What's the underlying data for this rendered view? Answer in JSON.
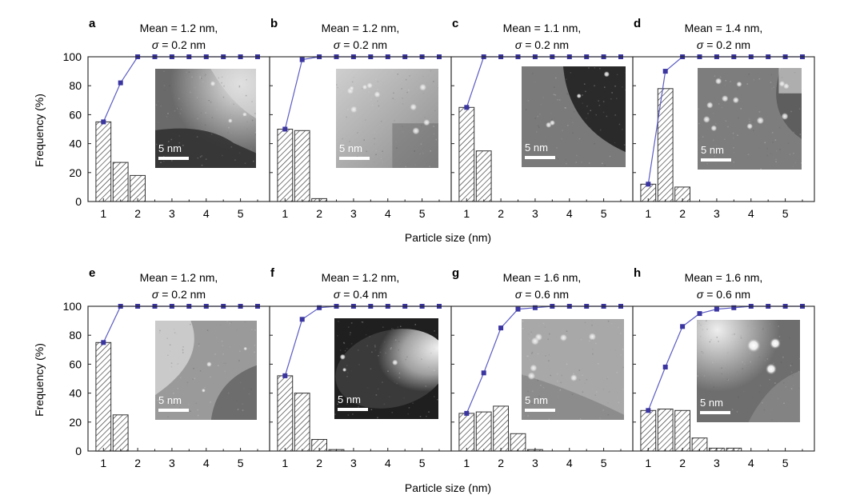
{
  "figure": {
    "xlabel": "Particle size (nm)",
    "ylabel": "Frequency (%)",
    "scale_bar_label": "5 nm"
  },
  "colors": {
    "line": "#5b5bc4",
    "marker": "#3a35a0",
    "bar_hatch": "#333333",
    "axis": "#222222"
  },
  "chart_data": [
    {
      "type": "bar",
      "panel": "a",
      "title_line1": "Mean = 1.2 nm,",
      "title_line2": "σ = 0.2 nm",
      "xlim": [
        0.55,
        5.85
      ],
      "ylim": [
        0,
        100
      ],
      "xticks": [
        1,
        2,
        3,
        4,
        5
      ],
      "yticks": [
        0,
        20,
        40,
        60,
        80,
        100
      ],
      "bars": {
        "x": [
          1.0,
          1.5,
          2.0
        ],
        "values": [
          55,
          27,
          18
        ]
      },
      "cumulative": {
        "x": [
          1.0,
          1.5,
          2.0,
          2.5,
          3.0,
          3.5,
          4.0,
          4.5,
          5.0,
          5.5
        ],
        "values": [
          55,
          82,
          100,
          100,
          100,
          100,
          100,
          100,
          100,
          100
        ]
      },
      "image": {
        "style": "a"
      }
    },
    {
      "type": "bar",
      "panel": "b",
      "title_line1": "Mean = 1.2 nm,",
      "title_line2": "σ = 0.2 nm",
      "xlim": [
        0.55,
        5.85
      ],
      "ylim": [
        0,
        100
      ],
      "xticks": [
        1,
        2,
        3,
        4,
        5
      ],
      "yticks": [
        0,
        20,
        40,
        60,
        80,
        100
      ],
      "bars": {
        "x": [
          1.0,
          1.5,
          2.0
        ],
        "values": [
          50,
          49,
          2
        ]
      },
      "cumulative": {
        "x": [
          1.0,
          1.5,
          2.0,
          2.5,
          3.0,
          3.5,
          4.0,
          4.5,
          5.0,
          5.5
        ],
        "values": [
          50,
          98,
          100,
          100,
          100,
          100,
          100,
          100,
          100,
          100
        ]
      },
      "image": {
        "style": "b"
      }
    },
    {
      "type": "bar",
      "panel": "c",
      "title_line1": "Mean = 1.1 nm,",
      "title_line2": "σ = 0.2 nm",
      "xlim": [
        0.55,
        5.85
      ],
      "ylim": [
        0,
        100
      ],
      "xticks": [
        1,
        2,
        3,
        4,
        5
      ],
      "yticks": [
        0,
        20,
        40,
        60,
        80,
        100
      ],
      "bars": {
        "x": [
          1.0,
          1.5
        ],
        "values": [
          65,
          35
        ]
      },
      "cumulative": {
        "x": [
          1.0,
          1.5,
          2.0,
          2.5,
          3.0,
          3.5,
          4.0,
          4.5,
          5.0,
          5.5
        ],
        "values": [
          65,
          100,
          100,
          100,
          100,
          100,
          100,
          100,
          100,
          100
        ]
      },
      "image": {
        "style": "c"
      }
    },
    {
      "type": "bar",
      "panel": "d",
      "title_line1": "Mean = 1.4 nm,",
      "title_line2": "σ = 0.2 nm",
      "xlim": [
        0.55,
        5.85
      ],
      "ylim": [
        0,
        100
      ],
      "xticks": [
        1,
        2,
        3,
        4,
        5
      ],
      "yticks": [
        0,
        20,
        40,
        60,
        80,
        100
      ],
      "bars": {
        "x": [
          1.0,
          1.5,
          2.0
        ],
        "values": [
          12,
          78,
          10
        ]
      },
      "cumulative": {
        "x": [
          1.0,
          1.5,
          2.0,
          2.5,
          3.0,
          3.5,
          4.0,
          4.5,
          5.0,
          5.5
        ],
        "values": [
          12,
          90,
          100,
          100,
          100,
          100,
          100,
          100,
          100,
          100
        ]
      },
      "image": {
        "style": "d"
      }
    },
    {
      "type": "bar",
      "panel": "e",
      "title_line1": "Mean = 1.2 nm,",
      "title_line2": "σ = 0.2 nm",
      "xlim": [
        0.55,
        5.85
      ],
      "ylim": [
        0,
        100
      ],
      "xticks": [
        1,
        2,
        3,
        4,
        5
      ],
      "yticks": [
        0,
        20,
        40,
        60,
        80,
        100
      ],
      "bars": {
        "x": [
          1.0,
          1.5
        ],
        "values": [
          75,
          25
        ]
      },
      "cumulative": {
        "x": [
          1.0,
          1.5,
          2.0,
          2.5,
          3.0,
          3.5,
          4.0,
          4.5,
          5.0,
          5.5
        ],
        "values": [
          75,
          100,
          100,
          100,
          100,
          100,
          100,
          100,
          100,
          100
        ]
      },
      "image": {
        "style": "e"
      }
    },
    {
      "type": "bar",
      "panel": "f",
      "title_line1": "Mean = 1.2 nm,",
      "title_line2": "σ = 0.4 nm",
      "xlim": [
        0.55,
        5.85
      ],
      "ylim": [
        0,
        100
      ],
      "xticks": [
        1,
        2,
        3,
        4,
        5
      ],
      "yticks": [
        0,
        20,
        40,
        60,
        80,
        100
      ],
      "bars": {
        "x": [
          1.0,
          1.5,
          2.0,
          2.5
        ],
        "values": [
          52,
          40,
          8,
          1
        ]
      },
      "cumulative": {
        "x": [
          1.0,
          1.5,
          2.0,
          2.5,
          3.0,
          3.5,
          4.0,
          4.5,
          5.0,
          5.5
        ],
        "values": [
          52,
          91,
          99,
          100,
          100,
          100,
          100,
          100,
          100,
          100
        ]
      },
      "image": {
        "style": "f"
      }
    },
    {
      "type": "bar",
      "panel": "g",
      "title_line1": "Mean = 1.6 nm,",
      "title_line2": "σ = 0.6 nm",
      "xlim": [
        0.55,
        5.85
      ],
      "ylim": [
        0,
        100
      ],
      "xticks": [
        1,
        2,
        3,
        4,
        5
      ],
      "yticks": [
        0,
        20,
        40,
        60,
        80,
        100
      ],
      "bars": {
        "x": [
          1.0,
          1.5,
          2.0,
          2.5,
          3.0
        ],
        "values": [
          26,
          27,
          31,
          12,
          1
        ]
      },
      "cumulative": {
        "x": [
          1.0,
          1.5,
          2.0,
          2.5,
          3.0,
          3.5,
          4.0,
          4.5,
          5.0,
          5.5
        ],
        "values": [
          26,
          54,
          85,
          98,
          99,
          100,
          100,
          100,
          100,
          100
        ]
      },
      "image": {
        "style": "g"
      }
    },
    {
      "type": "bar",
      "panel": "h",
      "title_line1": "Mean = 1.6 nm,",
      "title_line2": "σ = 0.6 nm",
      "xlim": [
        0.55,
        5.85
      ],
      "ylim": [
        0,
        100
      ],
      "xticks": [
        1,
        2,
        3,
        4,
        5
      ],
      "yticks": [
        0,
        20,
        40,
        60,
        80,
        100
      ],
      "bars": {
        "x": [
          1.0,
          1.5,
          2.0,
          2.5,
          3.0,
          3.5
        ],
        "values": [
          28,
          29,
          28,
          9,
          2,
          2
        ]
      },
      "cumulative": {
        "x": [
          1.0,
          1.5,
          2.0,
          2.5,
          3.0,
          3.5,
          4.0,
          4.5,
          5.0,
          5.5
        ],
        "values": [
          28,
          58,
          86,
          95,
          98,
          99,
          100,
          100,
          100,
          100
        ]
      },
      "image": {
        "style": "h"
      }
    }
  ]
}
